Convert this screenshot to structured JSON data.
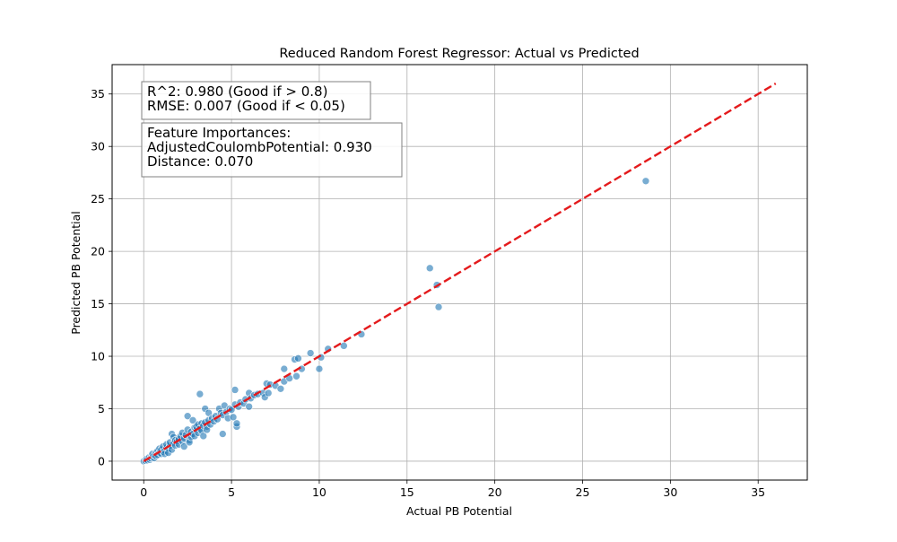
{
  "chart_data": {
    "type": "scatter",
    "title": "Reduced Random Forest Regressor: Actual vs Predicted",
    "xlabel": "Actual PB Potential",
    "ylabel": "Predicted PB Potential",
    "xlim": [
      -1.8,
      37.8
    ],
    "ylim": [
      -1.8,
      37.8
    ],
    "xticks": [
      0,
      5,
      10,
      15,
      20,
      25,
      30,
      35
    ],
    "yticks": [
      0,
      5,
      10,
      15,
      20,
      25,
      30,
      35
    ],
    "grid": true,
    "point_color": "#1f77b4",
    "line_color": "#e41a1c",
    "reference_line": {
      "x": [
        0,
        36
      ],
      "y": [
        0,
        36
      ],
      "style": "dashed"
    },
    "annotations": [
      {
        "lines": [
          "R^2: 0.980 (Good if > 0.8)",
          "RMSE: 0.007 (Good if < 0.05)"
        ]
      },
      {
        "lines": [
          "Feature Importances:",
          "AdjustedCoulombPotential: 0.930",
          "Distance: 0.070"
        ]
      }
    ],
    "points": [
      [
        0.0,
        0.0
      ],
      [
        0.1,
        0.05
      ],
      [
        0.15,
        0.2
      ],
      [
        0.2,
        0.1
      ],
      [
        0.3,
        0.35
      ],
      [
        0.35,
        0.15
      ],
      [
        0.4,
        0.3
      ],
      [
        0.45,
        0.5
      ],
      [
        0.5,
        0.4
      ],
      [
        0.5,
        0.7
      ],
      [
        0.6,
        0.3
      ],
      [
        0.6,
        0.55
      ],
      [
        0.7,
        0.8
      ],
      [
        0.7,
        0.5
      ],
      [
        0.8,
        1.0
      ],
      [
        0.8,
        0.6
      ],
      [
        0.9,
        0.8
      ],
      [
        0.9,
        1.2
      ],
      [
        1.0,
        0.7
      ],
      [
        1.0,
        1.1
      ],
      [
        1.1,
        0.9
      ],
      [
        1.1,
        1.4
      ],
      [
        1.2,
        1.0
      ],
      [
        1.2,
        0.7
      ],
      [
        1.3,
        1.3
      ],
      [
        1.3,
        1.6
      ],
      [
        1.4,
        1.2
      ],
      [
        1.4,
        0.8
      ],
      [
        1.5,
        1.5
      ],
      [
        1.5,
        1.8
      ],
      [
        1.6,
        1.1
      ],
      [
        1.6,
        2.6
      ],
      [
        1.7,
        1.7
      ],
      [
        1.7,
        2.3
      ],
      [
        1.8,
        1.5
      ],
      [
        1.8,
        2.0
      ],
      [
        1.9,
        1.9
      ],
      [
        2.0,
        2.1
      ],
      [
        2.0,
        1.6
      ],
      [
        2.1,
        2.4
      ],
      [
        2.2,
        1.9
      ],
      [
        2.2,
        2.7
      ],
      [
        2.3,
        1.4
      ],
      [
        2.3,
        2.2
      ],
      [
        2.4,
        2.5
      ],
      [
        2.5,
        4.3
      ],
      [
        2.5,
        3.0
      ],
      [
        2.6,
        2.0
      ],
      [
        2.6,
        1.8
      ],
      [
        2.7,
        2.8
      ],
      [
        2.7,
        2.3
      ],
      [
        2.8,
        3.9
      ],
      [
        2.8,
        2.6
      ],
      [
        2.9,
        3.2
      ],
      [
        2.9,
        2.4
      ],
      [
        3.0,
        3.0
      ],
      [
        3.0,
        3.3
      ],
      [
        3.1,
        2.7
      ],
      [
        3.1,
        3.5
      ],
      [
        3.2,
        6.4
      ],
      [
        3.2,
        3.1
      ],
      [
        3.3,
        2.9
      ],
      [
        3.3,
        3.6
      ],
      [
        3.4,
        3.4
      ],
      [
        3.4,
        2.4
      ],
      [
        3.5,
        5.0
      ],
      [
        3.5,
        3.7
      ],
      [
        3.6,
        3.3
      ],
      [
        3.6,
        3.0
      ],
      [
        3.7,
        3.9
      ],
      [
        3.7,
        4.6
      ],
      [
        3.8,
        3.5
      ],
      [
        3.9,
        4.1
      ],
      [
        4.0,
        3.8
      ],
      [
        4.1,
        4.3
      ],
      [
        4.2,
        4.0
      ],
      [
        4.3,
        5.0
      ],
      [
        4.4,
        4.6
      ],
      [
        4.5,
        2.6
      ],
      [
        4.5,
        4.4
      ],
      [
        4.6,
        5.3
      ],
      [
        4.7,
        4.7
      ],
      [
        4.8,
        4.1
      ],
      [
        4.9,
        5.0
      ],
      [
        5.0,
        4.9
      ],
      [
        5.1,
        4.2
      ],
      [
        5.2,
        6.8
      ],
      [
        5.2,
        5.4
      ],
      [
        5.3,
        3.3
      ],
      [
        5.3,
        3.6
      ],
      [
        5.4,
        5.2
      ],
      [
        5.5,
        5.6
      ],
      [
        5.7,
        5.5
      ],
      [
        5.8,
        5.9
      ],
      [
        6.0,
        6.5
      ],
      [
        6.0,
        5.2
      ],
      [
        6.1,
        6.0
      ],
      [
        6.3,
        6.3
      ],
      [
        6.5,
        6.4
      ],
      [
        6.8,
        6.5
      ],
      [
        6.9,
        6.1
      ],
      [
        7.0,
        7.4
      ],
      [
        7.1,
        6.5
      ],
      [
        7.2,
        7.3
      ],
      [
        7.5,
        7.2
      ],
      [
        7.8,
        6.9
      ],
      [
        8.0,
        7.6
      ],
      [
        8.0,
        8.8
      ],
      [
        8.3,
        7.9
      ],
      [
        8.6,
        9.7
      ],
      [
        8.7,
        8.1
      ],
      [
        8.8,
        9.8
      ],
      [
        9.0,
        8.8
      ],
      [
        9.5,
        10.3
      ],
      [
        10.0,
        8.8
      ],
      [
        10.1,
        9.9
      ],
      [
        10.5,
        10.7
      ],
      [
        11.4,
        11.0
      ],
      [
        12.4,
        12.1
      ],
      [
        16.3,
        18.4
      ],
      [
        16.7,
        16.8
      ],
      [
        16.8,
        14.7
      ],
      [
        28.6,
        26.7
      ]
    ]
  }
}
